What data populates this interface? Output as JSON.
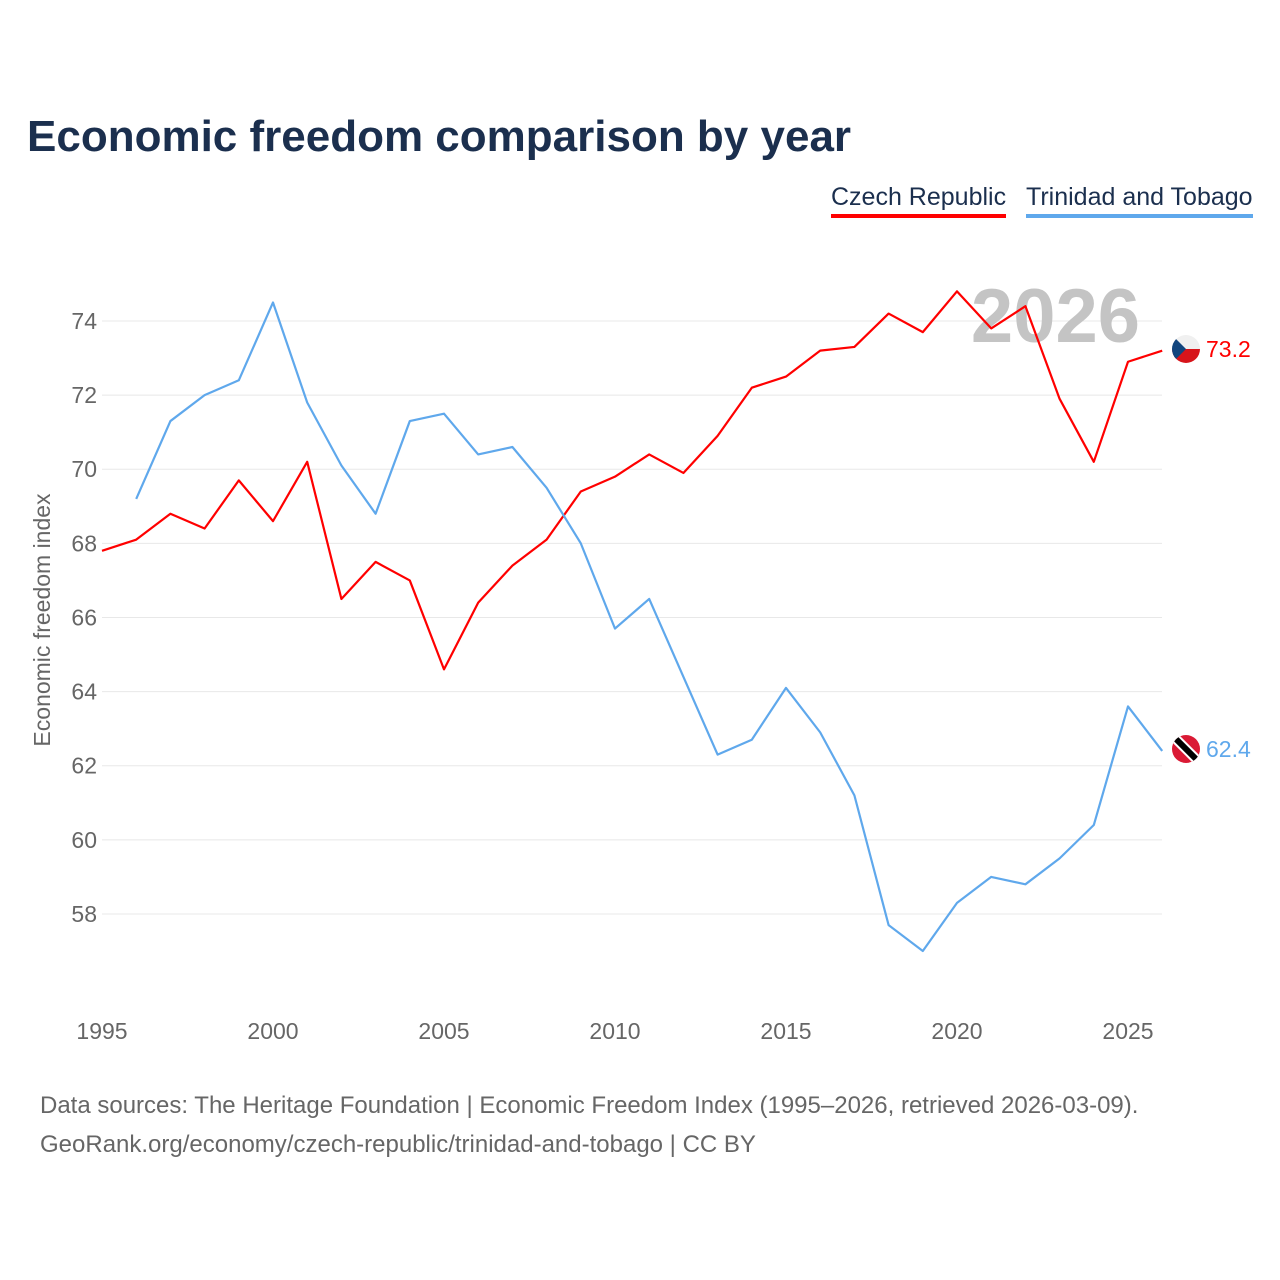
{
  "chart_data": {
    "type": "line",
    "title": "Economic freedom comparison by year",
    "xlabel": "",
    "ylabel": "Economic freedom index",
    "xlim": [
      1995,
      2026
    ],
    "ylim": [
      56,
      76
    ],
    "x_ticks": [
      1995,
      2000,
      2005,
      2010,
      2015,
      2020,
      2025
    ],
    "y_ticks": [
      58,
      60,
      62,
      64,
      66,
      68,
      70,
      72,
      74
    ],
    "grid": true,
    "legend_placement": "top-right",
    "year_watermark": "2026",
    "series": [
      {
        "name": "Czech Republic",
        "color": "#ff0000",
        "end_label": "73.2",
        "x": [
          1995,
          1996,
          1997,
          1998,
          1999,
          2000,
          2001,
          2002,
          2003,
          2004,
          2005,
          2006,
          2007,
          2008,
          2009,
          2010,
          2011,
          2012,
          2013,
          2014,
          2015,
          2016,
          2017,
          2018,
          2019,
          2020,
          2021,
          2022,
          2023,
          2024,
          2025,
          2026
        ],
        "values": [
          67.8,
          68.1,
          68.8,
          68.4,
          69.7,
          68.6,
          70.2,
          66.5,
          67.5,
          67.0,
          64.6,
          66.4,
          67.4,
          68.1,
          69.4,
          69.8,
          70.4,
          69.9,
          70.9,
          72.2,
          72.5,
          73.2,
          73.3,
          74.2,
          73.7,
          74.8,
          73.8,
          74.4,
          71.9,
          70.2,
          72.9,
          73.2
        ]
      },
      {
        "name": "Trinidad and Tobago",
        "color": "#5fa8ec",
        "end_label": "62.4",
        "x": [
          1996,
          1997,
          1998,
          1999,
          2000,
          2001,
          2002,
          2003,
          2004,
          2005,
          2006,
          2007,
          2008,
          2009,
          2010,
          2011,
          2012,
          2013,
          2014,
          2015,
          2016,
          2017,
          2018,
          2019,
          2020,
          2021,
          2022,
          2023,
          2024,
          2025,
          2026
        ],
        "values": [
          69.2,
          71.3,
          72.0,
          72.4,
          74.5,
          71.8,
          70.1,
          68.8,
          71.3,
          71.5,
          70.4,
          70.6,
          69.5,
          68.0,
          65.7,
          66.5,
          64.4,
          62.3,
          62.7,
          64.1,
          62.9,
          61.2,
          57.7,
          57.0,
          58.3,
          59.0,
          58.8,
          59.5,
          60.4,
          63.6,
          62.4
        ]
      }
    ]
  },
  "footer": {
    "line1": "Data sources: The Heritage Foundation | Economic Freedom Index (1995–2026, retrieved 2026-03-09).",
    "line2": "GeoRank.org/economy/czech-republic/trinidad-and-tobago | CC BY"
  }
}
